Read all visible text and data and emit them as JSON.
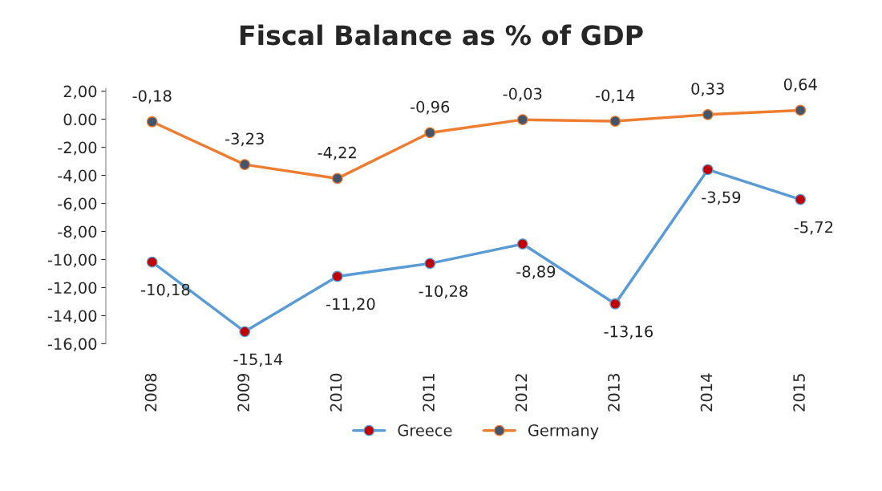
{
  "chart_data": {
    "type": "line",
    "title": "Fiscal Balance as % of GDP",
    "categories": [
      "2008",
      "2009",
      "2010",
      "2011",
      "2012",
      "2013",
      "2014",
      "2015"
    ],
    "series": [
      {
        "name": "Greece",
        "color": "#5b9bd5",
        "values": [
          -10.18,
          -15.14,
          -11.2,
          -10.28,
          -8.89,
          -13.16,
          -3.59,
          -5.72
        ],
        "value_labels": [
          "-10,18",
          "-15,14",
          "-11,20",
          "-10,28",
          "-8,89",
          "-13,16",
          "-3,59",
          "-5,72"
        ]
      },
      {
        "name": "Germany",
        "color": "#ed7d31",
        "values": [
          -0.18,
          -3.23,
          -4.22,
          -0.96,
          -0.03,
          -0.14,
          0.33,
          0.64
        ],
        "value_labels": [
          "-0,18",
          "-3,23",
          "-4,22",
          "-0,96",
          "-0,03",
          "-0,14",
          "0,33",
          "0,64"
        ]
      }
    ],
    "ylim": [
      -16,
      2.2
    ],
    "yticks": [
      {
        "value": 2,
        "label": "2,00"
      },
      {
        "value": 0,
        "label": "0.00"
      },
      {
        "value": -2,
        "label": "-2,00"
      },
      {
        "value": -4,
        "label": "-4,00"
      },
      {
        "value": -6,
        "label": "-6,00"
      },
      {
        "value": -8,
        "label": "-8,00"
      },
      {
        "value": -10,
        "label": "-10,00"
      },
      {
        "value": -12,
        "label": "-12,00"
      },
      {
        "value": -14,
        "label": "-14,00"
      },
      {
        "value": -16,
        "label": "-16,00"
      }
    ],
    "marker": "circle",
    "line_style": "solid",
    "grid": false,
    "legend": "bottom"
  }
}
